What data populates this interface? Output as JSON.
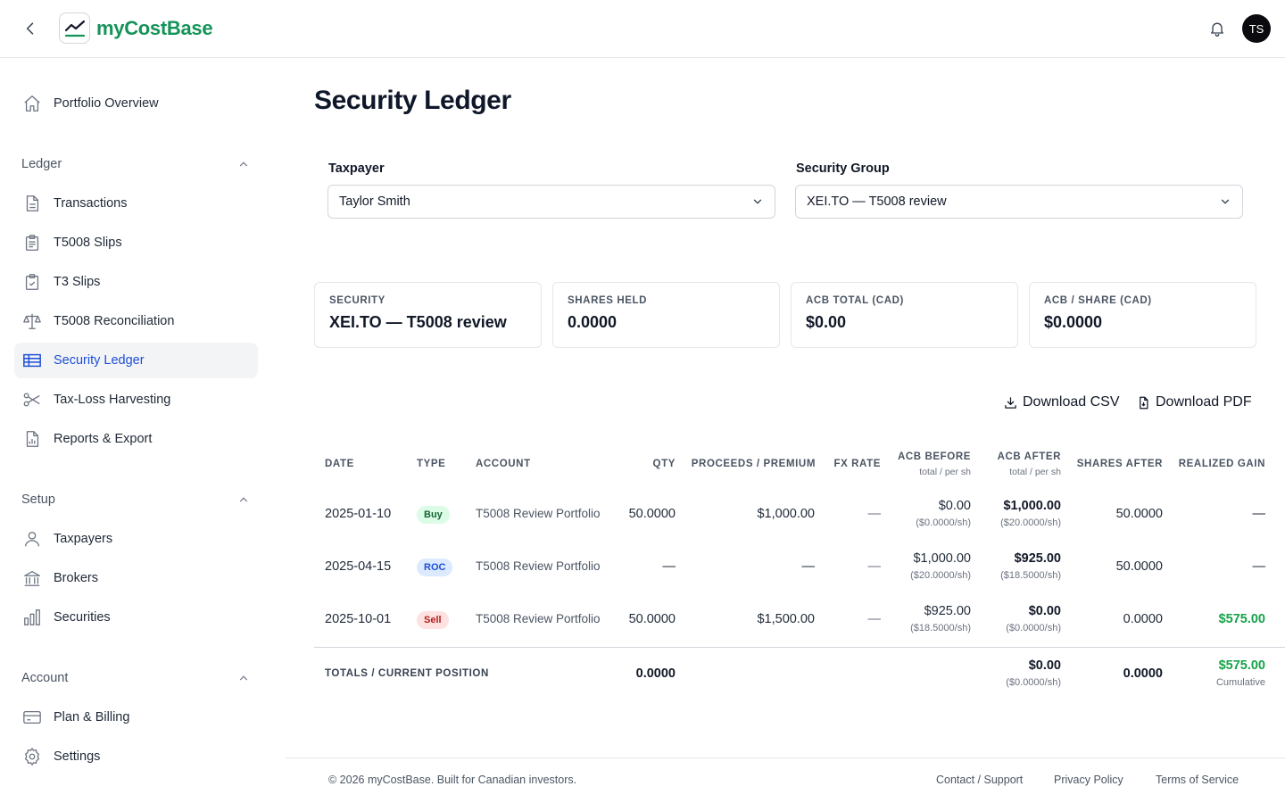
{
  "header": {
    "brand": "myCostBase",
    "avatar_initials": "TS",
    "brand_color": "#16935a"
  },
  "sidebar": {
    "top_item": "Portfolio Overview",
    "sections": [
      {
        "title": "Ledger",
        "items": [
          "Transactions",
          "T5008 Slips",
          "T3 Slips",
          "T5008 Reconciliation",
          "Security Ledger",
          "Tax-Loss Harvesting",
          "Reports & Export"
        ]
      },
      {
        "title": "Setup",
        "items": [
          "Taxpayers",
          "Brokers",
          "Securities"
        ]
      },
      {
        "title": "Account",
        "items": [
          "Plan & Billing",
          "Settings"
        ]
      }
    ],
    "active_item": "Security Ledger"
  },
  "main": {
    "title": "Security Ledger",
    "filters": {
      "taxpayer_label": "Taxpayer",
      "taxpayer_value": "Taylor Smith",
      "group_label": "Security Group",
      "group_value": "XEI.TO — T5008 review"
    },
    "cards": [
      {
        "label": "SECURITY",
        "value": "XEI.TO — T5008 review"
      },
      {
        "label": "SHARES HELD",
        "value": "0.0000"
      },
      {
        "label": "ACB TOTAL (CAD)",
        "value": "$0.00"
      },
      {
        "label": "ACB / SHARE (CAD)",
        "value": "$0.0000"
      }
    ],
    "actions": {
      "csv": "Download CSV",
      "pdf": "Download PDF"
    },
    "table": {
      "headers": {
        "date": "DATE",
        "type": "TYPE",
        "account": "ACCOUNT",
        "qty": "QTY",
        "proceeds": "PROCEEDS / PREMIUM",
        "fx": "FX RATE",
        "acb_before": "ACB BEFORE",
        "acb_after": "ACB AFTER",
        "acb_sub": "total / per sh",
        "shares_after": "SHARES AFTER",
        "gain": "REALIZED GAIN"
      },
      "rows": [
        {
          "date": "2025-01-10",
          "type": "Buy",
          "account": "T5008 Review Portfolio",
          "qty": "50.0000",
          "proceeds": "$1,000.00",
          "fx": "—",
          "acb_before": "$0.00",
          "acb_before_ps": "($0.0000/sh)",
          "acb_after": "$1,000.00",
          "acb_after_ps": "($20.0000/sh)",
          "shares_after": "50.0000",
          "gain": "—"
        },
        {
          "date": "2025-04-15",
          "type": "ROC",
          "account": "T5008 Review Portfolio",
          "qty": "—",
          "proceeds": "—",
          "fx": "—",
          "acb_before": "$1,000.00",
          "acb_before_ps": "($20.0000/sh)",
          "acb_after": "$925.00",
          "acb_after_ps": "($18.5000/sh)",
          "shares_after": "50.0000",
          "gain": "—"
        },
        {
          "date": "2025-10-01",
          "type": "Sell",
          "account": "T5008 Review Portfolio",
          "qty": "50.0000",
          "proceeds": "$1,500.00",
          "fx": "—",
          "acb_before": "$925.00",
          "acb_before_ps": "($18.5000/sh)",
          "acb_after": "$0.00",
          "acb_after_ps": "($0.0000/sh)",
          "shares_after": "0.0000",
          "gain": "$575.00"
        }
      ],
      "totals": {
        "label": "TOTALS / CURRENT POSITION",
        "qty": "0.0000",
        "acb_after": "$0.00",
        "acb_after_ps": "($0.0000/sh)",
        "shares_after": "0.0000",
        "gain": "$575.00",
        "gain_note": "Cumulative"
      }
    }
  },
  "footer": {
    "copyright": "© 2026 myCostBase. Built for Canadian investors.",
    "links": [
      "Contact / Support",
      "Privacy Policy",
      "Terms of Service"
    ]
  }
}
